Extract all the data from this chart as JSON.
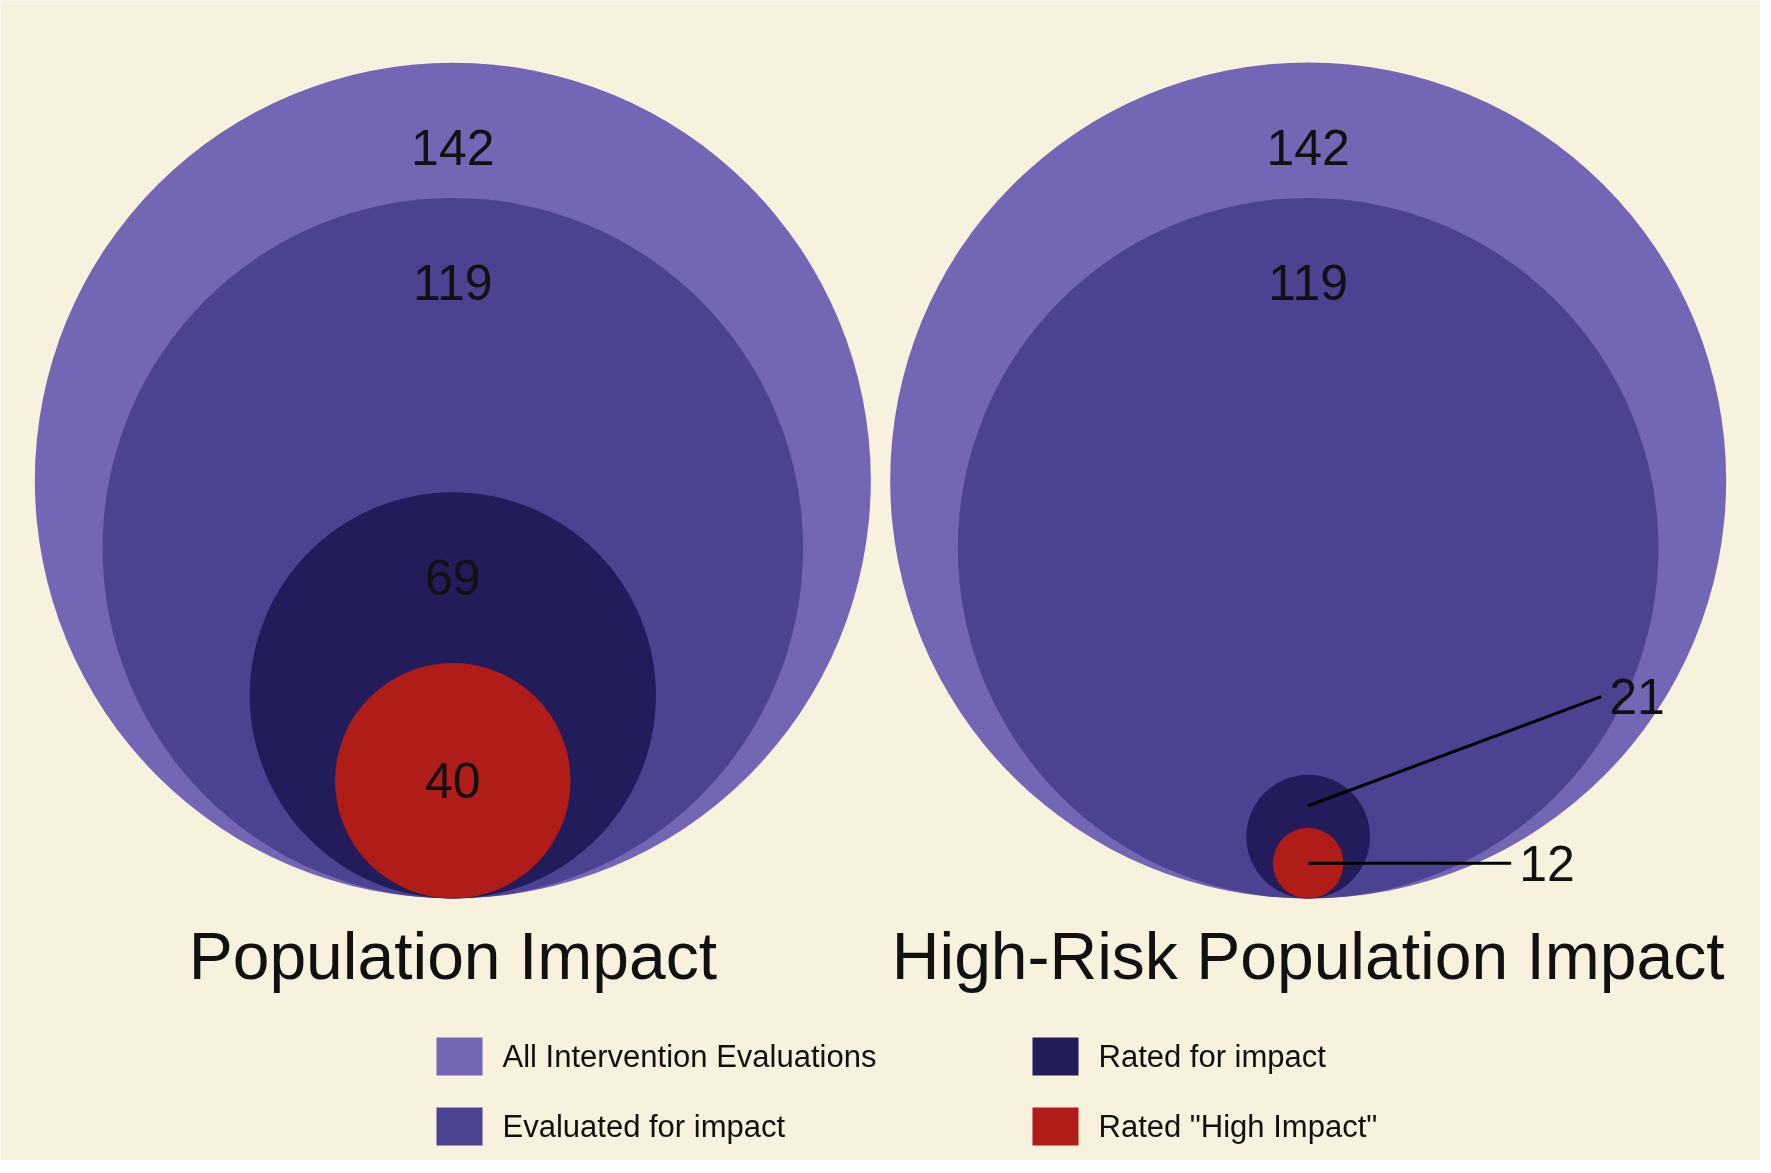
{
  "chart_data": {
    "type": "other",
    "categories": [
      "Population Impact",
      "High-Risk Population Impact"
    ],
    "series": [
      {
        "name": "All Intervention Evaluations",
        "color": "#7366b5",
        "values": [
          142,
          142
        ]
      },
      {
        "name": "Evaluated for impact",
        "color": "#4b4392",
        "values": [
          119,
          119
        ]
      },
      {
        "name": "Rated for impact",
        "color": "#221c5b",
        "values": [
          69,
          21
        ]
      },
      {
        "name": "Rated \"High Impact\"",
        "color": "#b01c18",
        "values": [
          40,
          12
        ]
      }
    ],
    "legend": "bottom",
    "data_labels": true
  }
}
